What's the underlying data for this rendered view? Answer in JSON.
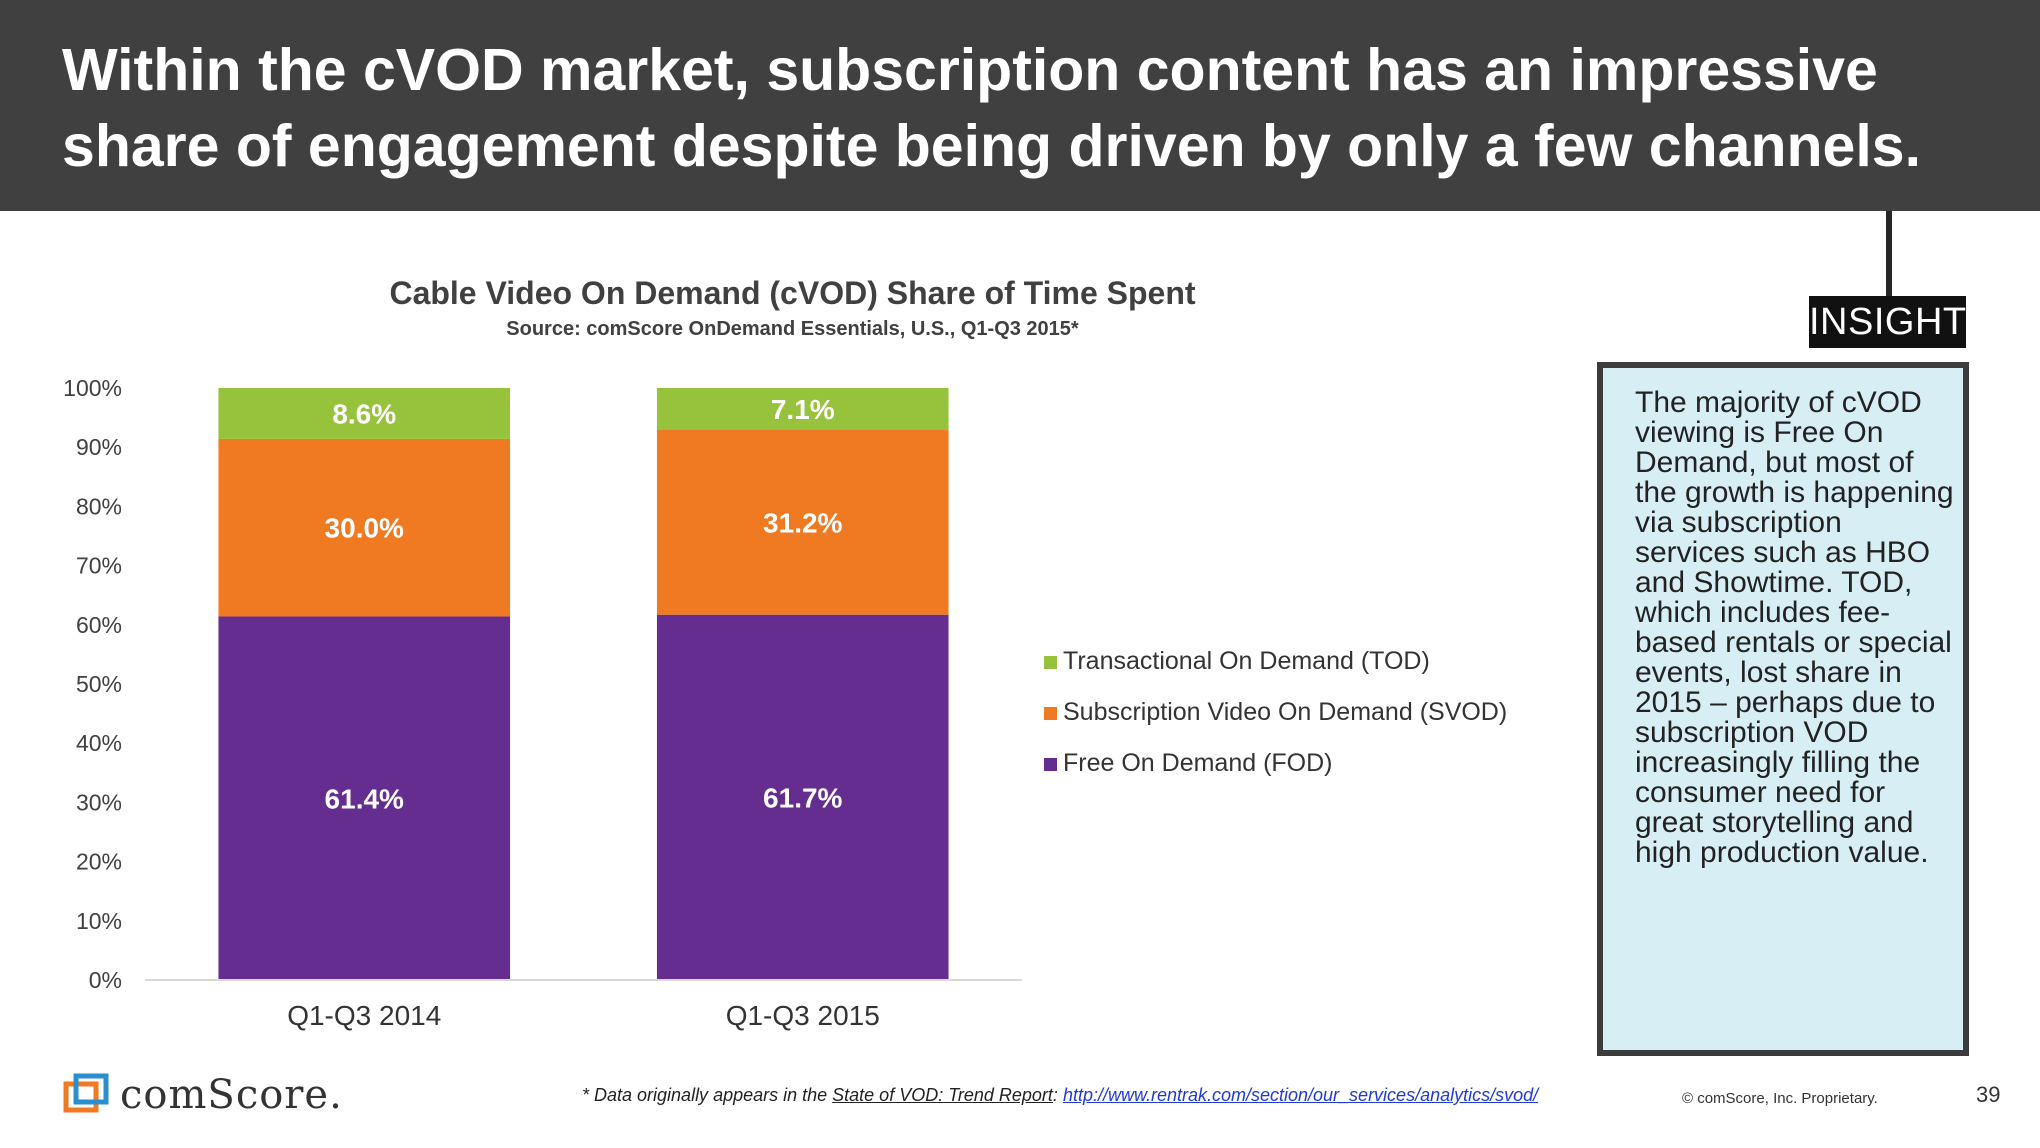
{
  "header": {
    "headline": "Within the cVOD market, subscription content has an impressive share of engagement despite being driven by only a few channels."
  },
  "insight": {
    "tag": "INSIGHT",
    "text": "The majority of cVOD viewing is Free On Demand, but most of the growth is happening via subscription services such as HBO and Showtime. TOD, which includes fee-based rentals or special events, lost share in 2015 – perhaps due to subscription VOD increasingly filling the consumer need for great storytelling and high production value."
  },
  "footer": {
    "logo_text": "comScore.",
    "footnote_prefix": "* Data originally appears in the ",
    "footnote_report": "State of VOD: Trend Report",
    "footnote_colon": ": ",
    "footnote_url": "http://www.rentrak.com/section/our_services/analytics/svod/",
    "copyright": "© comScore, Inc. Proprietary.",
    "page_number": "39"
  },
  "chart_data": {
    "type": "bar",
    "stacked": true,
    "title": "Cable Video On Demand (cVOD) Share of Time Spent",
    "subtitle": "Source: comScore OnDemand Essentials, U.S., Q1-Q3 2015*",
    "categories": [
      "Q1-Q3 2014",
      "Q1-Q3 2015"
    ],
    "series": [
      {
        "name": "Free On Demand (FOD)",
        "values": [
          61.4,
          61.7
        ],
        "labels": [
          "61.4%",
          "61.7%"
        ],
        "color": "#652d90"
      },
      {
        "name": "Subscription Video On Demand (SVOD)",
        "values": [
          30.0,
          31.2
        ],
        "labels": [
          "30.0%",
          "31.2%"
        ],
        "color": "#f07a22"
      },
      {
        "name": "Transactional On Demand (TOD)",
        "values": [
          8.6,
          7.1
        ],
        "labels": [
          "8.6%",
          "7.1%"
        ],
        "color": "#97c33c"
      }
    ],
    "ylim": [
      0,
      100
    ],
    "yticks": [
      "0%",
      "10%",
      "20%",
      "30%",
      "40%",
      "50%",
      "60%",
      "70%",
      "80%",
      "90%",
      "100%"
    ],
    "legend_position": "right",
    "legend_order": [
      "Transactional On Demand (TOD)",
      "Subscription Video On Demand (SVOD)",
      "Free On Demand (FOD)"
    ],
    "grid": false
  }
}
